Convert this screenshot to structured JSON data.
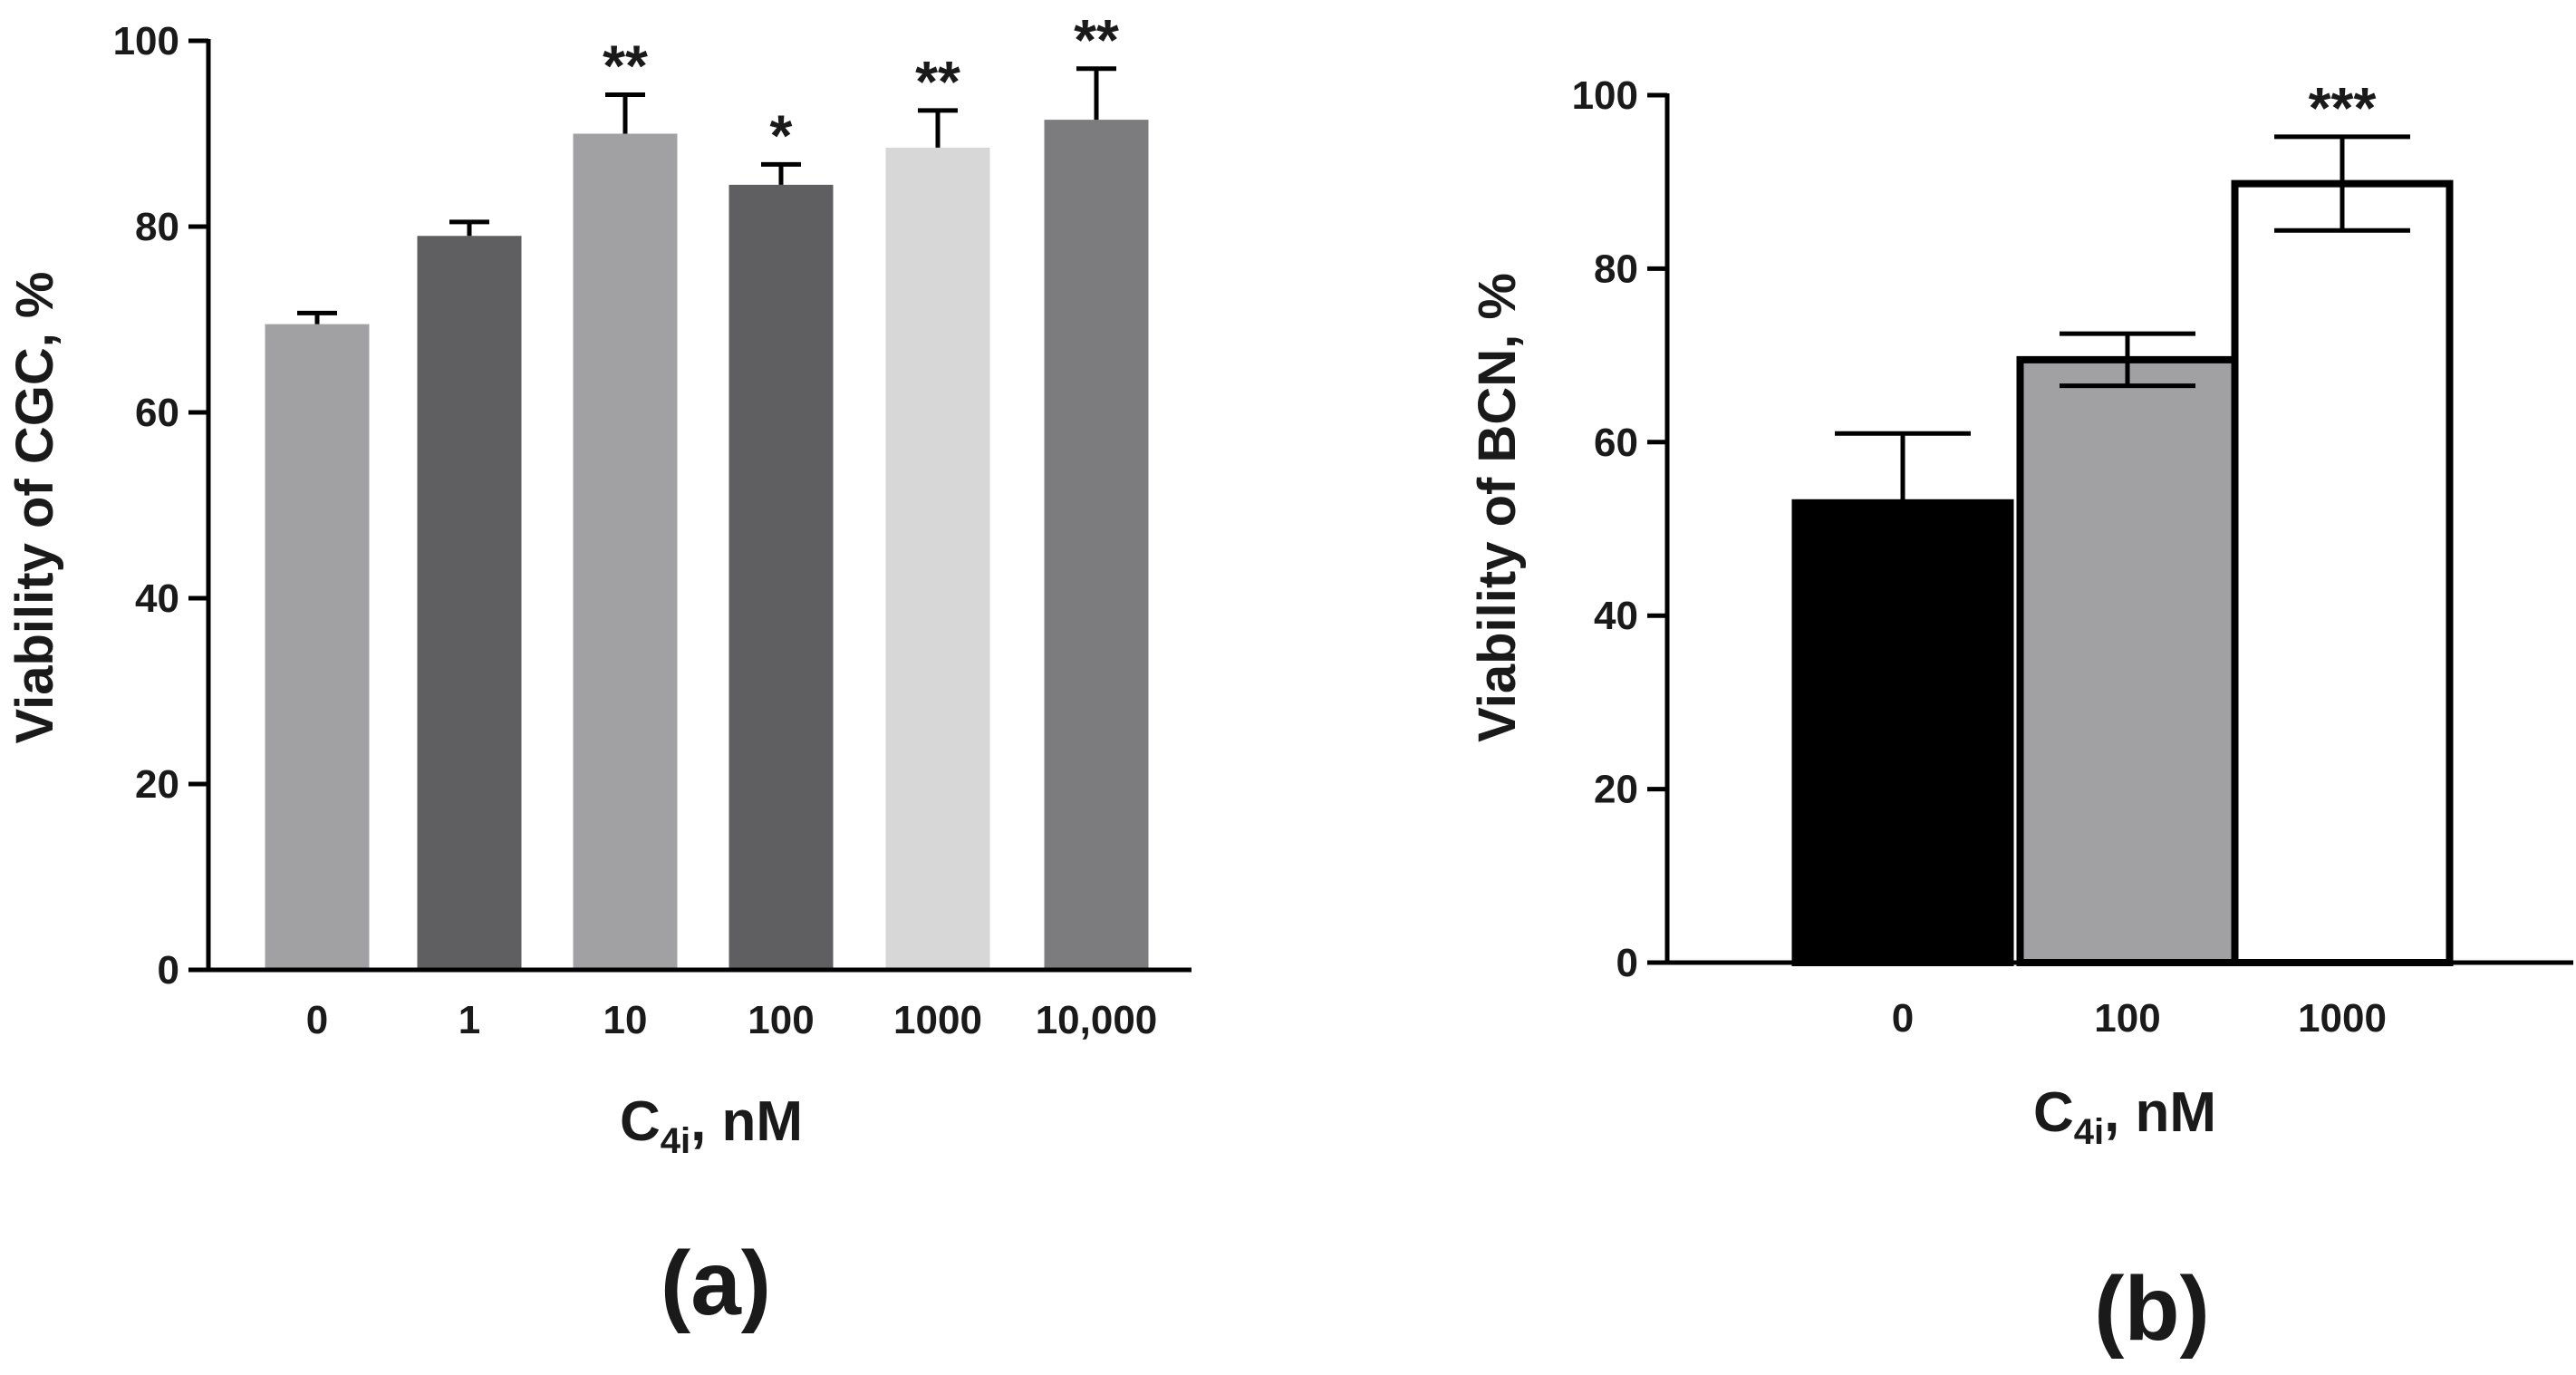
{
  "colors": {
    "axis": "#000000",
    "text": "#1a1a1a"
  },
  "chart_data": [
    {
      "id": "a",
      "type": "bar",
      "panel_label": "(a)",
      "xlabel_main": "C",
      "xlabel_sub": "4i",
      "xlabel_unit": ", nM",
      "ylabel": "Viability of CGC, %",
      "ylim": [
        0,
        100
      ],
      "yticks": [
        0,
        20,
        40,
        60,
        80,
        100
      ],
      "categories": [
        "0",
        "1",
        "10",
        "100",
        "1000",
        "10,000"
      ],
      "values": [
        69.5,
        79,
        90,
        84.5,
        88.5,
        91.5
      ],
      "errors": [
        1.2,
        1.5,
        4.2,
        2.2,
        4.0,
        5.5
      ],
      "error_style": "upper",
      "significance": [
        "",
        "",
        "**",
        "*",
        "**",
        "**"
      ],
      "bar_colors": [
        "#a1a1a4",
        "#5f5f61",
        "#a1a1a4",
        "#5f5f61",
        "#d7d7d7",
        "#7c7c7e"
      ],
      "bar_outline": false
    },
    {
      "id": "b",
      "type": "bar",
      "panel_label": "(b)",
      "xlabel_main": "C",
      "xlabel_sub": "4i",
      "xlabel_unit": ", nM",
      "ylabel": "Viability of BCN, %",
      "ylim": [
        0,
        100
      ],
      "yticks": [
        0,
        20,
        40,
        60,
        80,
        100
      ],
      "categories": [
        "0",
        "100",
        "1000"
      ],
      "values": [
        53,
        69.5,
        89.8
      ],
      "errors": [
        8,
        3,
        5.4
      ],
      "error_style": "mixed",
      "significance": [
        "",
        "",
        "***"
      ],
      "bar_colors": [
        "#000000",
        "#a1a1a4",
        "#ffffff"
      ],
      "bar_outline": true
    }
  ]
}
